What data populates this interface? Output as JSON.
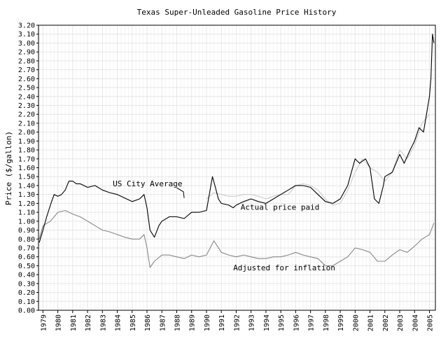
{
  "chart_data": {
    "type": "line",
    "title": "Texas Super-Unleaded Gasoline Price History",
    "xlabel": "",
    "ylabel": "Price ($/gallon)",
    "xlim": [
      1978.7,
      2005.4
    ],
    "ylim": [
      0,
      3.2
    ],
    "grid": true,
    "y_ticks": [
      "0.00",
      "0.10",
      "0.20",
      "0.30",
      "0.40",
      "0.50",
      "0.60",
      "0.70",
      "0.80",
      "0.90",
      "1.00",
      "1.10",
      "1.20",
      "1.30",
      "1.40",
      "1.50",
      "1.60",
      "1.70",
      "1.80",
      "1.90",
      "2.00",
      "2.10",
      "2.20",
      "2.30",
      "2.40",
      "2.50",
      "2.60",
      "2.70",
      "2.80",
      "2.90",
      "3.00",
      "3.10",
      "3.20"
    ],
    "x_ticks": [
      "1979",
      "1980",
      "1981",
      "1982",
      "1983",
      "1984",
      "1985",
      "1986",
      "1987",
      "1988",
      "1989",
      "1990",
      "1991",
      "1992",
      "1993",
      "1994",
      "1995",
      "1996",
      "1997",
      "1998",
      "1999",
      "2000",
      "2001",
      "2002",
      "2003",
      "2004",
      "2005"
    ],
    "annotations": [
      {
        "text": "US City Average",
        "series": "US City Average"
      },
      {
        "text": "Actual price paid",
        "series": "Actual price paid"
      },
      {
        "text": "Adjusted for inflation",
        "series": "Adjusted for inflation"
      }
    ],
    "series": [
      {
        "name": "Actual price paid",
        "color": "#000000",
        "x": [
          1978.75,
          1979.0,
          1979.25,
          1979.5,
          1979.75,
          1980.0,
          1980.25,
          1980.5,
          1980.75,
          1981.0,
          1981.25,
          1981.5,
          1981.75,
          1982.0,
          1982.5,
          1983.0,
          1983.5,
          1984.0,
          1984.5,
          1985.0,
          1985.5,
          1985.8,
          1986.0,
          1986.2,
          1986.5,
          1986.8,
          1987.0,
          1987.5,
          1988.0,
          1988.5,
          1989.0,
          1989.5,
          1990.0,
          1990.4,
          1990.6,
          1990.8,
          1991.0,
          1991.5,
          1991.8,
          1992.0,
          1992.5,
          1993.0,
          1993.5,
          1994.0,
          1994.5,
          1995.0,
          1995.5,
          1996.0,
          1996.5,
          1997.0,
          1997.5,
          1998.0,
          1998.5,
          1999.0,
          1999.5,
          2000.0,
          2000.3,
          2000.7,
          2001.0,
          2001.3,
          2001.6,
          2001.9,
          2002.0,
          2002.5,
          2003.0,
          2003.3,
          2003.7,
          2004.0,
          2004.3,
          2004.6,
          2004.9,
          2005.0,
          2005.1,
          2005.2,
          2005.3
        ],
        "y": [
          0.76,
          0.9,
          1.05,
          1.18,
          1.3,
          1.28,
          1.3,
          1.35,
          1.45,
          1.45,
          1.42,
          1.42,
          1.4,
          1.38,
          1.4,
          1.35,
          1.32,
          1.3,
          1.26,
          1.22,
          1.25,
          1.3,
          1.15,
          0.9,
          0.82,
          0.95,
          1.0,
          1.05,
          1.05,
          1.03,
          1.1,
          1.1,
          1.12,
          1.5,
          1.38,
          1.25,
          1.2,
          1.18,
          1.15,
          1.18,
          1.22,
          1.25,
          1.22,
          1.2,
          1.25,
          1.3,
          1.35,
          1.4,
          1.4,
          1.38,
          1.3,
          1.22,
          1.2,
          1.25,
          1.4,
          1.7,
          1.65,
          1.7,
          1.6,
          1.25,
          1.2,
          1.4,
          1.5,
          1.55,
          1.75,
          1.65,
          1.8,
          1.9,
          2.05,
          2.0,
          2.3,
          2.4,
          2.6,
          3.1,
          3.0
        ]
      },
      {
        "name": "US City Average",
        "color": "#cccccc",
        "x": [
          1990.0,
          1990.5,
          1991.0,
          1991.5,
          1992.0,
          1992.5,
          1993.0,
          1993.5,
          1994.0,
          1994.5,
          1995.0,
          1995.5,
          1996.0,
          1996.5,
          1997.0,
          1997.5,
          1998.0,
          1998.5,
          1999.0,
          1999.5,
          2000.0,
          2000.5,
          2001.0,
          2001.5,
          2002.0,
          2002.5,
          2003.0,
          2003.5,
          2004.0,
          2004.5,
          2005.0
        ],
        "y": [
          1.25,
          1.32,
          1.3,
          1.28,
          1.28,
          1.3,
          1.3,
          1.28,
          1.25,
          1.28,
          1.3,
          1.3,
          1.4,
          1.42,
          1.4,
          1.35,
          1.25,
          1.18,
          1.2,
          1.35,
          1.55,
          1.7,
          1.6,
          1.55,
          1.45,
          1.55,
          1.8,
          1.7,
          1.85,
          2.1,
          2.2
        ]
      },
      {
        "name": "Adjusted for inflation",
        "color": "#888888",
        "x": [
          1978.75,
          1979.0,
          1979.5,
          1980.0,
          1980.5,
          1981.0,
          1981.5,
          1982.0,
          1982.5,
          1983.0,
          1983.5,
          1984.0,
          1984.5,
          1985.0,
          1985.5,
          1985.8,
          1986.0,
          1986.2,
          1986.5,
          1987.0,
          1987.5,
          1988.0,
          1988.5,
          1989.0,
          1989.5,
          1990.0,
          1990.5,
          1991.0,
          1991.5,
          1992.0,
          1992.5,
          1993.0,
          1993.5,
          1994.0,
          1994.5,
          1995.0,
          1995.5,
          1996.0,
          1996.5,
          1997.0,
          1997.5,
          1998.0,
          1998.5,
          1999.0,
          1999.5,
          2000.0,
          2000.5,
          2001.0,
          2001.5,
          2002.0,
          2002.5,
          2003.0,
          2003.5,
          2004.0,
          2004.5,
          2005.0,
          2005.3
        ],
        "y": [
          0.8,
          0.95,
          1.0,
          1.1,
          1.12,
          1.08,
          1.05,
          1.0,
          0.95,
          0.9,
          0.88,
          0.85,
          0.82,
          0.8,
          0.8,
          0.85,
          0.7,
          0.48,
          0.55,
          0.62,
          0.62,
          0.6,
          0.58,
          0.62,
          0.6,
          0.62,
          0.78,
          0.65,
          0.62,
          0.6,
          0.62,
          0.6,
          0.58,
          0.58,
          0.6,
          0.6,
          0.62,
          0.65,
          0.62,
          0.6,
          0.58,
          0.5,
          0.5,
          0.55,
          0.6,
          0.7,
          0.68,
          0.65,
          0.55,
          0.55,
          0.62,
          0.68,
          0.65,
          0.72,
          0.8,
          0.85,
          0.98
        ]
      }
    ]
  }
}
